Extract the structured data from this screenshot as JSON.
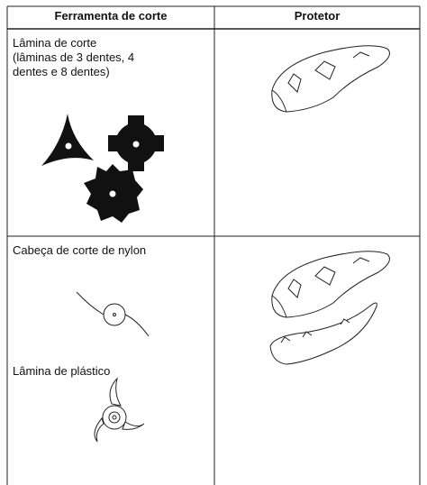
{
  "table": {
    "header": [
      "Ferramenta de corte",
      "Protetor"
    ],
    "rows": [
      {
        "title": "Lâmina de corte",
        "subtitle": "(lâminas de 3 dentes, 4 dentes e 8 dentes)"
      },
      {
        "items": [
          "Cabeça de corte de nylon",
          "Lâmina de plástico"
        ]
      }
    ]
  }
}
